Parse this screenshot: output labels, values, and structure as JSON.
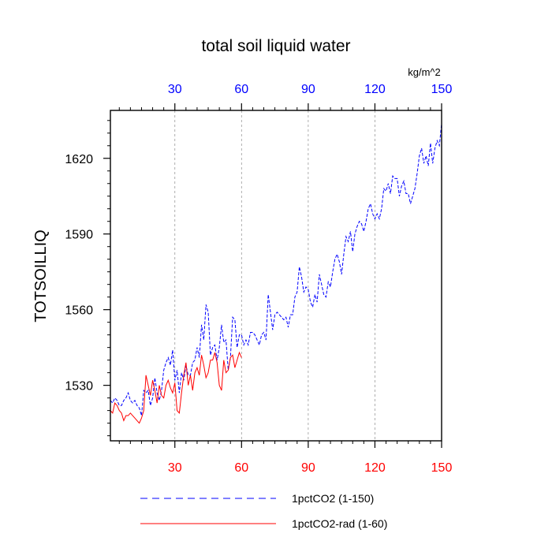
{
  "chart_data": {
    "type": "line",
    "title": "total soil liquid water",
    "units": "kg/m^2",
    "ylabel": "TOTSOILLIQ",
    "xlabel": "",
    "xlim": [
      1,
      150
    ],
    "ylim": [
      1508,
      1639
    ],
    "x_ticks": [
      30,
      60,
      90,
      120,
      150
    ],
    "y_ticks": [
      1530,
      1560,
      1590,
      1620
    ],
    "grid": "vertical dashed at x ticks",
    "colors": {
      "bottom_axis": "#ff0000",
      "top_axis": "#0000ff"
    },
    "legend": {
      "placement": "bottom"
    },
    "series": [
      {
        "name": "1pctCO2 (1-150)",
        "color": "#0000ff",
        "style": "dashed",
        "x_start": 1,
        "values": [
          1524,
          1523,
          1525,
          1524,
          1522,
          1522,
          1524,
          1525,
          1527,
          1524,
          1523,
          1524,
          1522,
          1521,
          1518,
          1528,
          1527,
          1528,
          1522,
          1525,
          1533,
          1527,
          1524,
          1528,
          1536,
          1539,
          1541,
          1538,
          1544,
          1532,
          1536,
          1527,
          1535,
          1532,
          1538,
          1534,
          1534,
          1539,
          1540,
          1545,
          1541,
          1554,
          1548,
          1562,
          1559,
          1542,
          1545,
          1546,
          1540,
          1545,
          1554,
          1547,
          1548,
          1536,
          1541,
          1557,
          1556,
          1545,
          1550,
          1550,
          1546,
          1548,
          1546,
          1551,
          1551,
          1550,
          1548,
          1546,
          1550,
          1551,
          1548,
          1566,
          1559,
          1552,
          1558,
          1559,
          1558,
          1557,
          1556,
          1557,
          1553,
          1558,
          1558,
          1565,
          1567,
          1577,
          1573,
          1567,
          1569,
          1568,
          1563,
          1561,
          1566,
          1563,
          1574,
          1570,
          1566,
          1565,
          1571,
          1569,
          1575,
          1580,
          1582,
          1579,
          1574,
          1582,
          1589,
          1587,
          1591,
          1583,
          1590,
          1593,
          1595,
          1594,
          1591,
          1595,
          1600,
          1602,
          1598,
          1596,
          1598,
          1596,
          1600,
          1608,
          1607,
          1610,
          1606,
          1613,
          1612,
          1612,
          1605,
          1609,
          1611,
          1606,
          1606,
          1602,
          1605,
          1608,
          1614,
          1621,
          1624,
          1618,
          1621,
          1617,
          1626,
          1618,
          1624,
          1627,
          1625,
          1634
        ]
      },
      {
        "name": "1pctCO2-rad (1-60)",
        "color": "#ff0000",
        "style": "solid",
        "x_start": 1,
        "values": [
          1520,
          1519,
          1523,
          1522,
          1520,
          1519,
          1516,
          1518,
          1518,
          1519,
          1518,
          1517,
          1516,
          1515,
          1517,
          1520,
          1534,
          1530,
          1526,
          1532,
          1528,
          1523,
          1530,
          1526,
          1525,
          1530,
          1532,
          1529,
          1527,
          1531,
          1520,
          1519,
          1527,
          1534,
          1539,
          1530,
          1534,
          1528,
          1535,
          1537,
          1534,
          1542,
          1538,
          1533,
          1535,
          1540,
          1540,
          1543,
          1539,
          1530,
          1528,
          1540,
          1535,
          1536,
          1541,
          1542,
          1537,
          1540,
          1543,
          1541
        ]
      }
    ]
  }
}
